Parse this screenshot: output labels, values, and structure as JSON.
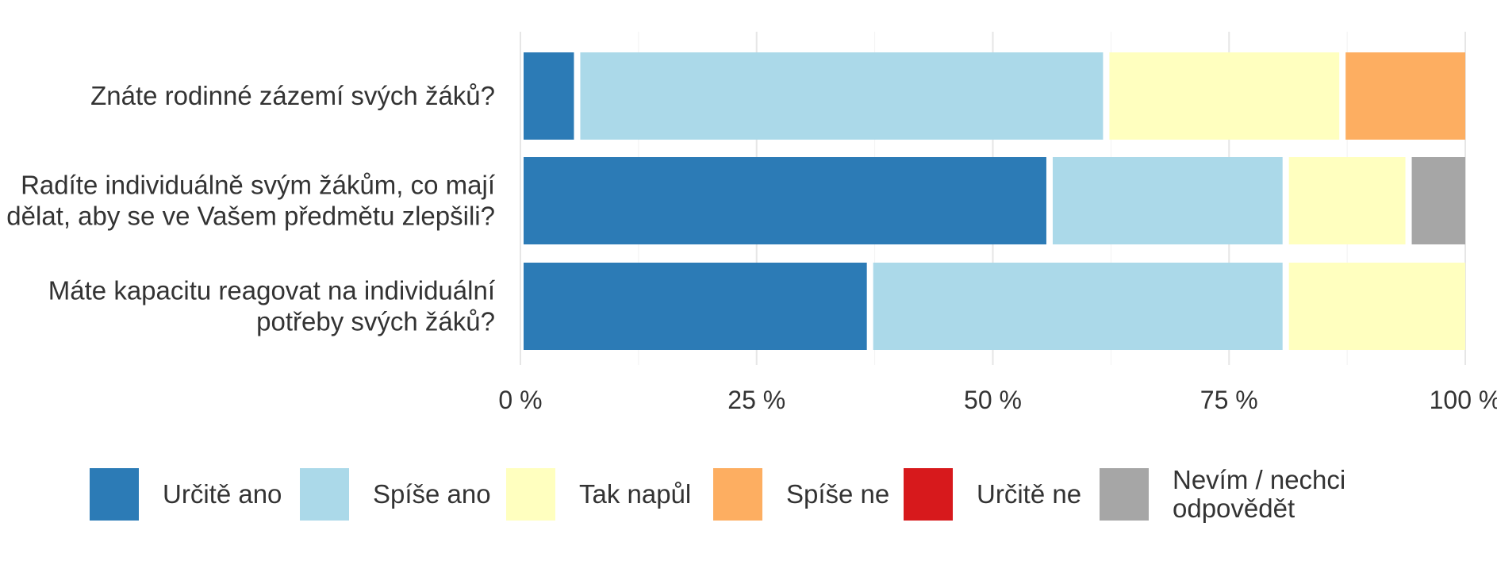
{
  "chart_data": {
    "type": "bar",
    "orientation": "horizontal",
    "stacked": true,
    "categories": [
      "Znáte rodinné zázemí svých žáků?",
      "Radíte individuálně svým žákům, co mají\ndělat, aby se ve Vašem předmětu zlepšili?",
      "Máte kapacitu reagovat na individuální\npotřeby svých žáků?"
    ],
    "series": [
      {
        "name": "Určitě ano",
        "color": "#2c7bb6",
        "values": [
          6,
          56,
          37
        ]
      },
      {
        "name": "Spíše ano",
        "color": "#abd9e9",
        "values": [
          56,
          25,
          44
        ]
      },
      {
        "name": "Tak napůl",
        "color": "#ffffbf",
        "values": [
          25,
          13,
          19
        ]
      },
      {
        "name": "Spíše ne",
        "color": "#fdae61",
        "values": [
          13,
          0,
          0
        ]
      },
      {
        "name": "Určitě ne",
        "color": "#d7191c",
        "values": [
          0,
          0,
          0
        ]
      },
      {
        "name": "Nevím / nechci\nodpovědět",
        "color": "#a6a6a6",
        "values": [
          0,
          6,
          0
        ]
      }
    ],
    "xlim": [
      0,
      100
    ],
    "x_ticks": [
      0,
      25,
      50,
      75,
      100
    ],
    "x_tick_labels": [
      "0 %",
      "25 %",
      "50 %",
      "75 %",
      "100 %"
    ],
    "grid": true,
    "legend_position": "bottom",
    "title": "",
    "xlabel": "",
    "ylabel": ""
  }
}
